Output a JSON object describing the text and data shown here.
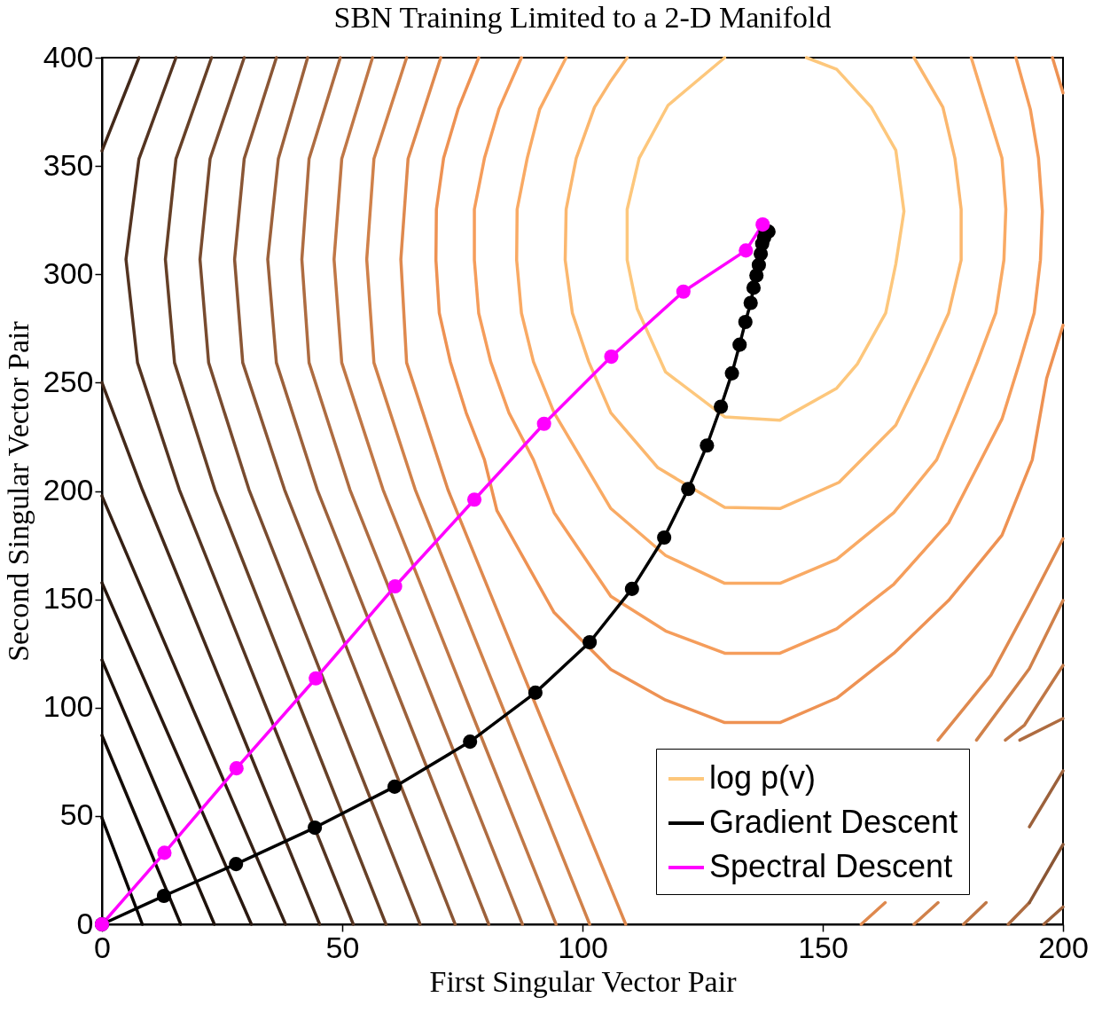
{
  "chart_data": {
    "type": "line",
    "title": "SBN Training Limited to a 2-D Manifold",
    "xlabel": "First Singular Vector Pair",
    "ylabel": "Second Singular Vector Pair",
    "xlim": [
      0,
      200
    ],
    "ylim": [
      0,
      400
    ],
    "xticks": [
      0,
      50,
      100,
      150,
      200
    ],
    "yticks": [
      0,
      50,
      100,
      150,
      200,
      250,
      300,
      350,
      400
    ],
    "grid": false,
    "legend": "bottom right",
    "series": [
      {
        "name": "log p(v)",
        "color": "#fdc77c",
        "x": [
          129.6,
          117.8,
          111.8,
          109.3,
          109.3,
          111.4,
          117.3,
          129.6,
          141.1,
          152.9,
          157.2,
          163.1,
          165.2,
          166.9,
          165.2,
          160.1,
          152.9,
          146.6
        ],
        "values": [
          400,
          378,
          353.6,
          330,
          306.6,
          284,
          254.9,
          234.2,
          232.7,
          247.4,
          258.6,
          282.1,
          304.7,
          329.1,
          357.3,
          377.1,
          394.6,
          400
        ]
      },
      {
        "color": "#fbb76e",
        "x": [
          109.3,
          105.9,
          102.5,
          98.7,
          96.6,
          96.4,
          97.9,
          101.3,
          105.9,
          115.7,
          129.6,
          141.1,
          153.4,
          165.2,
          171.6,
          176.2,
          178.8,
          178.8,
          177.5,
          175,
          169
        ],
        "values": [
          400,
          389.3,
          377.1,
          353.6,
          330,
          306.6,
          282.1,
          259.6,
          236.1,
          210.7,
          192.4,
          191.9,
          204,
          230.4,
          259.6,
          282.1,
          306.6,
          330,
          353.6,
          377.1,
          400
        ]
      },
      {
        "color": "#f9aa64",
        "x": [
          96.6,
          91.1,
          88.5,
          86.4,
          86.3,
          87.3,
          89.8,
          94.1,
          105.9,
          117.3,
          129.6,
          141.1,
          152.9,
          164.8,
          173.7,
          177.9,
          182.2,
          186,
          187.7,
          188.1,
          187.3,
          180.9
        ],
        "values": [
          400,
          376.2,
          353.6,
          330,
          306.6,
          282.1,
          259.6,
          236.1,
          191.9,
          170.2,
          157.4,
          157.4,
          168.4,
          190,
          214.4,
          236.1,
          259.6,
          282.1,
          306.6,
          330,
          353.6,
          400
        ]
      },
      {
        "color": "#f59d5b",
        "x": [
          87.3,
          82.6,
          79.6,
          77.5,
          77.5,
          78.4,
          80.9,
          84.7,
          89.8,
          94.1,
          105.9,
          117.3,
          129.6,
          141.1,
          152.9,
          164.8,
          176.2,
          187.3,
          191,
          194,
          195.3,
          195.7,
          194.9,
          193.2,
          190.2
        ],
        "values": [
          400,
          376.2,
          353.6,
          330,
          306.6,
          282.1,
          259.6,
          236.1,
          214.4,
          190,
          151.4,
          135.4,
          125.1,
          125.1,
          136.4,
          157,
          185.3,
          233.2,
          259.6,
          282.1,
          306.6,
          329.1,
          353.6,
          376.2,
          400
        ]
      },
      {
        "color": "#ee9253",
        "x": [
          78.4,
          74.1,
          71.1,
          69.6,
          69.5,
          70.2,
          72.5,
          75.8,
          79.6,
          82.2,
          94.1,
          105.9,
          117.3,
          129.6,
          141.1,
          152.9,
          164.8,
          176.2,
          187.3,
          193.6,
          196.6,
          200
        ],
        "values": [
          400,
          376.2,
          353.6,
          330,
          306.6,
          282.1,
          259.6,
          236.1,
          214.4,
          190.9,
          143.9,
          117.6,
          103.5,
          93.1,
          93.1,
          104.4,
          125.1,
          149.5,
          179.6,
          214.4,
          252,
          276.5
        ]
      },
      {
        "color": "#ee9253",
        "x": [
          197.8,
          200
        ],
        "values": [
          400,
          383.7
        ]
      },
      {
        "color": "#df894e",
        "x": [
          70.5,
          63.7,
          62.2,
          63.4,
          72,
          90.5,
          109
        ],
        "values": [
          400,
          353.3,
          306.9,
          259.2,
          200.6,
          100,
          0
        ]
      },
      {
        "color": "#df894e",
        "x": [
          200,
          193,
          185,
          174
        ],
        "values": [
          178,
          148,
          115,
          85
        ]
      },
      {
        "color": "#df894e",
        "x": [
          158,
          163
        ],
        "values": [
          0,
          10
        ]
      },
      {
        "color": "#d0814a",
        "x": [
          63.4,
          56.6,
          55.1,
          56.6,
          65.2,
          83.4,
          101.5
        ],
        "values": [
          400,
          353.3,
          306.9,
          259.2,
          200.6,
          100,
          0
        ]
      },
      {
        "color": "#d0814a",
        "x": [
          200,
          193,
          182
        ],
        "values": [
          149.4,
          118,
          85
        ]
      },
      {
        "color": "#d0814a",
        "x": [
          169,
          174
        ],
        "values": [
          0,
          10
        ]
      },
      {
        "color": "#c07746",
        "x": [
          56.3,
          49.9,
          48.3,
          49.9,
          58.5,
          76.5,
          94.5
        ],
        "values": [
          400,
          353.3,
          306.9,
          259.2,
          200.6,
          100,
          0
        ]
      },
      {
        "color": "#c07746",
        "x": [
          200,
          192,
          188
        ],
        "values": [
          119.5,
          92,
          85
        ]
      },
      {
        "color": "#c07746",
        "x": [
          179.3,
          184
        ],
        "values": [
          0,
          10
        ]
      },
      {
        "color": "#ae6c41",
        "x": [
          49.6,
          43.1,
          41.6,
          43.1,
          51.6,
          69.6,
          87.5
        ],
        "values": [
          400,
          353.3,
          306.9,
          259.2,
          200.6,
          100,
          0
        ]
      },
      {
        "color": "#ae6c41",
        "x": [
          200,
          191
        ],
        "values": [
          95,
          85
        ]
      },
      {
        "color": "#ae6c41",
        "x": [
          188.6,
          193
        ],
        "values": [
          0,
          10
        ]
      },
      {
        "color": "#9c613b",
        "x": [
          42.8,
          36.7,
          34.5,
          36.3,
          44.8,
          62.7,
          80.5
        ],
        "values": [
          400,
          353.3,
          306.9,
          259.2,
          200.6,
          100,
          0
        ]
      },
      {
        "color": "#9c613b",
        "x": [
          200,
          193
        ],
        "values": [
          70.8,
          45
        ]
      },
      {
        "color": "#9c613b",
        "x": [
          196,
          200
        ],
        "values": [
          0,
          8
        ]
      },
      {
        "color": "#8a5635",
        "x": [
          36.3,
          29.6,
          27.6,
          29.3,
          38,
          55.8,
          73.5
        ],
        "values": [
          400,
          353.3,
          306.9,
          259.2,
          200.6,
          100,
          0
        ]
      },
      {
        "color": "#8a5635",
        "x": [
          200,
          193
        ],
        "values": [
          36.8,
          10
        ]
      },
      {
        "color": "#784b2f",
        "x": [
          29.6,
          22.5,
          20.4,
          22.2,
          30.6,
          48.4,
          66.2
        ],
        "values": [
          400,
          353.3,
          306.9,
          259.2,
          200.6,
          100,
          0
        ]
      },
      {
        "color": "#664027",
        "x": [
          22.8,
          15.4,
          13.2,
          15.1,
          23.5,
          41.3,
          59.1
        ],
        "values": [
          400,
          353.3,
          306.9,
          259.2,
          200.6,
          100,
          0
        ]
      },
      {
        "color": "#543421",
        "x": [
          15.4,
          7.7,
          5,
          7.4,
          16.1,
          34.2,
          52.3
        ],
        "values": [
          400,
          353.3,
          306.9,
          259.2,
          200.6,
          100,
          0
        ]
      },
      {
        "color": "#43291a",
        "x": [
          7.7,
          0
        ],
        "values": [
          400,
          357
        ]
      },
      {
        "color": "#43291a",
        "x": [
          0,
          8.4,
          26.9,
          45.3
        ],
        "values": [
          250,
          200.6,
          100,
          0
        ]
      },
      {
        "color": "#352014",
        "x": [
          0,
          19,
          38.2
        ],
        "values": [
          197.7,
          99,
          0
        ]
      },
      {
        "color": "#29180f",
        "x": [
          0,
          15.5,
          31.1
        ],
        "values": [
          157.6,
          79,
          0
        ]
      },
      {
        "color": "#1e120b",
        "x": [
          0,
          11.7,
          23.4
        ],
        "values": [
          122,
          61,
          0
        ]
      },
      {
        "color": "#140c07",
        "x": [
          0,
          8.2,
          16.4
        ],
        "values": [
          87.2,
          43.6,
          0
        ]
      },
      {
        "color": "#0a0503",
        "x": [
          0,
          4.2,
          8.4
        ],
        "values": [
          49.1,
          24.5,
          0
        ]
      },
      {
        "name": "Gradient Descent",
        "color": "#000000",
        "marker": "circle",
        "x": [
          0,
          12.9,
          27.9,
          44.3,
          60.9,
          76.6,
          90.2,
          101.5,
          110.3,
          117,
          122,
          125.9,
          128.8,
          131.1,
          132.7,
          133.9,
          135,
          135.6,
          136.2,
          136.7,
          137.1,
          137.4,
          137.8,
          138.1,
          138.7
        ],
        "values": [
          0,
          13.1,
          27.8,
          44.6,
          63.5,
          84.3,
          106.9,
          130.2,
          154.8,
          178.5,
          200.9,
          221,
          238.9,
          254.3,
          267.5,
          278,
          286.8,
          293.8,
          299.5,
          304.3,
          309.4,
          314.1,
          316.9,
          319.8,
          319.7
        ]
      },
      {
        "name": "Spectral Descent",
        "color": "#ff00ff",
        "marker": "circle",
        "x": [
          0,
          13,
          28,
          44.5,
          61,
          77.5,
          92,
          106,
          121,
          134,
          137.5
        ],
        "values": [
          0,
          33,
          72,
          113.5,
          156,
          196,
          231,
          262,
          292,
          311,
          323
        ]
      }
    ]
  }
}
